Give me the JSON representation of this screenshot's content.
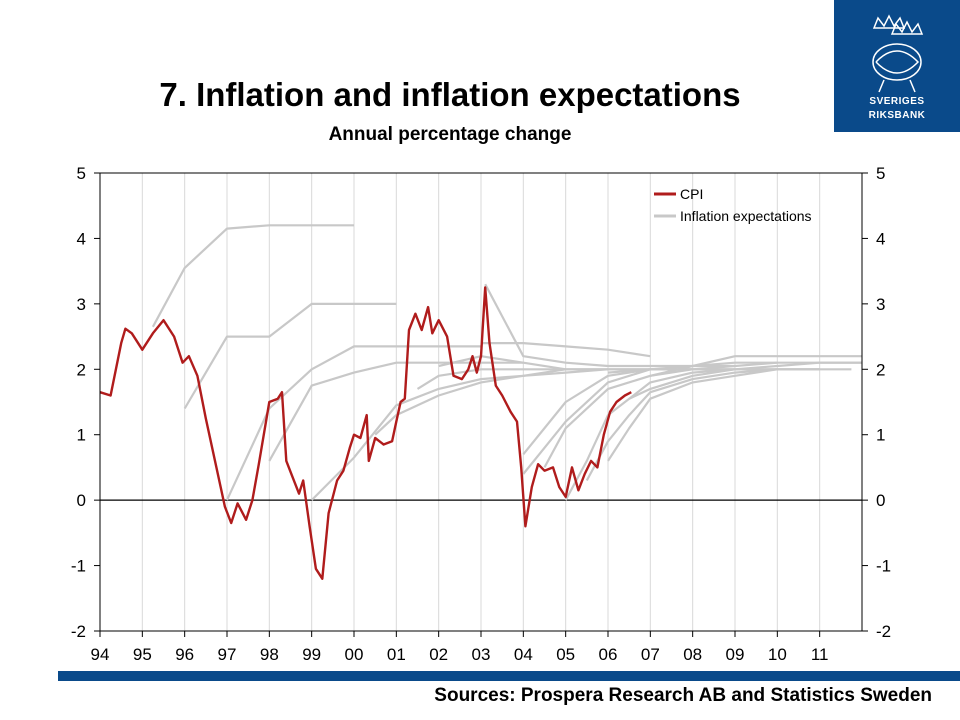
{
  "header": {
    "title": "7. Inflation and inflation expectations",
    "subtitle": "Annual percentage change"
  },
  "logo": {
    "line1": "SVERIGES",
    "line2": "RIKSBANK"
  },
  "footer": {
    "sources": "Sources: Prospera Research AB and Statistics Sweden"
  },
  "colors": {
    "cpi": "#b01c1c",
    "expectations": "#c8c8c8",
    "brand": "#0a4a8a"
  },
  "chart_data": {
    "type": "line",
    "title": "7. Inflation and inflation expectations",
    "subtitle": "Annual percentage change",
    "xlim": [
      1994,
      2012
    ],
    "ylim": [
      -2,
      5
    ],
    "x_tick_labels": [
      "94",
      "95",
      "96",
      "97",
      "98",
      "99",
      "00",
      "01",
      "02",
      "03",
      "04",
      "05",
      "06",
      "07",
      "08",
      "09",
      "10",
      "11"
    ],
    "y_tick_labels_left": [
      "5",
      "4",
      "3",
      "2",
      "1",
      "0",
      "-1",
      "-2"
    ],
    "y_tick_labels_right": [
      "5",
      "4",
      "3",
      "2",
      "1",
      "0",
      "-1",
      "-2"
    ],
    "grid": true,
    "legend_position": "top-right",
    "series": [
      {
        "name": "CPI",
        "color": "#b01c1c",
        "points": [
          [
            1994.0,
            1.65
          ],
          [
            1994.25,
            1.6
          ],
          [
            1994.5,
            2.4
          ],
          [
            1994.6,
            2.62
          ],
          [
            1994.75,
            2.55
          ],
          [
            1995.0,
            2.3
          ],
          [
            1995.25,
            2.55
          ],
          [
            1995.5,
            2.75
          ],
          [
            1995.75,
            2.5
          ],
          [
            1995.95,
            2.1
          ],
          [
            1996.1,
            2.2
          ],
          [
            1996.3,
            1.9
          ],
          [
            1996.5,
            1.25
          ],
          [
            1996.75,
            0.5
          ],
          [
            1996.95,
            -0.1
          ],
          [
            1997.1,
            -0.35
          ],
          [
            1997.25,
            -0.05
          ],
          [
            1997.45,
            -0.3
          ],
          [
            1997.6,
            0.0
          ],
          [
            1997.75,
            0.55
          ],
          [
            1998.0,
            1.5
          ],
          [
            1998.2,
            1.55
          ],
          [
            1998.3,
            1.65
          ],
          [
            1998.4,
            0.6
          ],
          [
            1998.55,
            0.35
          ],
          [
            1998.7,
            0.1
          ],
          [
            1998.8,
            0.3
          ],
          [
            1998.95,
            -0.4
          ],
          [
            1999.1,
            -1.05
          ],
          [
            1999.25,
            -1.2
          ],
          [
            1999.4,
            -0.2
          ],
          [
            1999.6,
            0.3
          ],
          [
            1999.75,
            0.45
          ],
          [
            1999.9,
            0.8
          ],
          [
            2000.0,
            1.0
          ],
          [
            2000.15,
            0.95
          ],
          [
            2000.3,
            1.3
          ],
          [
            2000.35,
            0.6
          ],
          [
            2000.5,
            0.95
          ],
          [
            2000.7,
            0.85
          ],
          [
            2000.9,
            0.9
          ],
          [
            2001.0,
            1.2
          ],
          [
            2001.1,
            1.5
          ],
          [
            2001.2,
            1.55
          ],
          [
            2001.3,
            2.6
          ],
          [
            2001.45,
            2.85
          ],
          [
            2001.6,
            2.6
          ],
          [
            2001.75,
            2.95
          ],
          [
            2001.85,
            2.55
          ],
          [
            2002.0,
            2.75
          ],
          [
            2002.2,
            2.5
          ],
          [
            2002.35,
            1.9
          ],
          [
            2002.55,
            1.85
          ],
          [
            2002.7,
            2.0
          ],
          [
            2002.8,
            2.2
          ],
          [
            2002.9,
            1.95
          ],
          [
            2003.0,
            2.2
          ],
          [
            2003.1,
            3.25
          ],
          [
            2003.2,
            2.4
          ],
          [
            2003.35,
            1.75
          ],
          [
            2003.5,
            1.6
          ],
          [
            2003.7,
            1.35
          ],
          [
            2003.85,
            1.2
          ],
          [
            2003.95,
            0.5
          ],
          [
            2004.05,
            -0.4
          ],
          [
            2004.2,
            0.2
          ],
          [
            2004.35,
            0.55
          ],
          [
            2004.5,
            0.45
          ],
          [
            2004.7,
            0.5
          ],
          [
            2004.85,
            0.2
          ],
          [
            2005.0,
            0.05
          ],
          [
            2005.15,
            0.5
          ],
          [
            2005.3,
            0.15
          ],
          [
            2005.45,
            0.4
          ],
          [
            2005.6,
            0.6
          ],
          [
            2005.75,
            0.5
          ],
          [
            2005.9,
            1.0
          ],
          [
            2006.05,
            1.35
          ],
          [
            2006.2,
            1.5
          ],
          [
            2006.4,
            1.6
          ],
          [
            2006.55,
            1.65
          ]
        ]
      },
      {
        "name": "Inflation expectations",
        "color": "#c8c8c8",
        "lines": [
          [
            [
              1995.25,
              2.65
            ],
            [
              1996.0,
              3.55
            ],
            [
              1997.0,
              4.15
            ],
            [
              1998.0,
              4.2
            ],
            [
              1999.0,
              4.2
            ],
            [
              2000.0,
              4.2
            ]
          ],
          [
            [
              1996.0,
              1.4
            ],
            [
              1997.0,
              2.5
            ],
            [
              1998.0,
              2.5
            ],
            [
              1999.0,
              3.0
            ],
            [
              2000.0,
              3.0
            ],
            [
              2001.0,
              3.0
            ]
          ],
          [
            [
              1997.0,
              0.0
            ],
            [
              1998.0,
              1.4
            ],
            [
              1999.0,
              2.0
            ],
            [
              2000.0,
              2.35
            ],
            [
              2001.0,
              2.35
            ],
            [
              2002.0,
              2.35
            ],
            [
              2003.0,
              2.35
            ]
          ],
          [
            [
              1998.0,
              0.6
            ],
            [
              1999.0,
              1.75
            ],
            [
              2000.0,
              1.95
            ],
            [
              2001.0,
              2.1
            ],
            [
              2002.0,
              2.1
            ],
            [
              2003.0,
              2.1
            ],
            [
              2004.0,
              2.1
            ]
          ],
          [
            [
              1999.0,
              0.0
            ],
            [
              2000.0,
              0.65
            ],
            [
              2001.0,
              1.45
            ],
            [
              2002.0,
              1.7
            ],
            [
              2003.0,
              1.85
            ],
            [
              2004.0,
              1.9
            ],
            [
              2005.0,
              2.0
            ]
          ],
          [
            [
              2000.5,
              1.0
            ],
            [
              2001.0,
              1.3
            ],
            [
              2002.0,
              1.6
            ],
            [
              2003.0,
              1.8
            ],
            [
              2004.0,
              1.9
            ],
            [
              2005.0,
              1.95
            ],
            [
              2006.0,
              2.0
            ]
          ],
          [
            [
              2001.5,
              1.7
            ],
            [
              2002.0,
              1.9
            ],
            [
              2003.0,
              2.0
            ],
            [
              2004.0,
              2.0
            ],
            [
              2005.0,
              2.0
            ],
            [
              2006.0,
              2.0
            ],
            [
              2007.0,
              2.0
            ]
          ],
          [
            [
              2002.0,
              2.05
            ],
            [
              2003.0,
              2.2
            ],
            [
              2004.0,
              2.1
            ],
            [
              2005.0,
              2.0
            ],
            [
              2006.0,
              2.0
            ],
            [
              2007.0,
              2.0
            ],
            [
              2008.0,
              2.0
            ]
          ],
          [
            [
              2003.1,
              3.3
            ],
            [
              2004.0,
              2.2
            ],
            [
              2005.0,
              2.1
            ],
            [
              2006.0,
              2.05
            ],
            [
              2007.0,
              2.05
            ],
            [
              2008.0,
              2.05
            ],
            [
              2009.0,
              2.05
            ]
          ],
          [
            [
              2003.0,
              2.4
            ],
            [
              2004.0,
              2.4
            ],
            [
              2005.0,
              2.35
            ],
            [
              2006.0,
              2.3
            ],
            [
              2007.0,
              2.2
            ]
          ],
          [
            [
              2004.0,
              0.4
            ],
            [
              2004.5,
              0.8
            ],
            [
              2005.0,
              1.2
            ],
            [
              2006.0,
              1.8
            ],
            [
              2007.0,
              2.0
            ],
            [
              2008.0,
              2.05
            ],
            [
              2009.0,
              2.1
            ],
            [
              2010.0,
              2.1
            ]
          ],
          [
            [
              2004.0,
              0.7
            ],
            [
              2005.0,
              1.5
            ],
            [
              2006.0,
              1.9
            ],
            [
              2007.0,
              2.0
            ],
            [
              2008.0,
              2.0
            ],
            [
              2009.0,
              2.0
            ]
          ],
          [
            [
              2004.5,
              0.5
            ],
            [
              2005.0,
              1.1
            ],
            [
              2006.0,
              1.7
            ],
            [
              2007.0,
              1.9
            ],
            [
              2008.0,
              2.0
            ],
            [
              2009.0,
              2.0
            ],
            [
              2010.0,
              2.0
            ]
          ],
          [
            [
              2005.0,
              0.0
            ],
            [
              2005.5,
              0.6
            ],
            [
              2006.0,
              1.3
            ],
            [
              2007.0,
              1.8
            ],
            [
              2008.0,
              1.95
            ],
            [
              2009.0,
              2.0
            ],
            [
              2010.0,
              2.0
            ],
            [
              2011.0,
              2.0
            ]
          ],
          [
            [
              2005.5,
              0.3
            ],
            [
              2006.0,
              0.9
            ],
            [
              2006.5,
              1.3
            ],
            [
              2007.0,
              1.65
            ],
            [
              2008.0,
              1.85
            ],
            [
              2009.0,
              1.95
            ],
            [
              2010.0,
              2.0
            ],
            [
              2011.0,
              2.0
            ]
          ],
          [
            [
              2006.0,
              0.6
            ],
            [
              2006.5,
              1.1
            ],
            [
              2007.0,
              1.55
            ],
            [
              2008.0,
              1.8
            ],
            [
              2009.0,
              1.9
            ],
            [
              2010.0,
              2.0
            ],
            [
              2011.0,
              2.0
            ],
            [
              2011.75,
              2.0
            ]
          ],
          [
            [
              2006.5,
              1.55
            ],
            [
              2007.0,
              1.7
            ],
            [
              2008.0,
              1.9
            ],
            [
              2009.0,
              2.0
            ],
            [
              2010.0,
              2.05
            ],
            [
              2011.0,
              2.1
            ],
            [
              2012.0,
              2.1
            ]
          ],
          [
            [
              2007.0,
              1.9
            ],
            [
              2008.0,
              2.05
            ],
            [
              2009.0,
              2.2
            ],
            [
              2010.0,
              2.2
            ],
            [
              2011.0,
              2.2
            ],
            [
              2012.0,
              2.2
            ]
          ],
          [
            [
              2006.0,
              1.95
            ],
            [
              2007.0,
              2.0
            ],
            [
              2008.0,
              2.0
            ],
            [
              2009.0,
              2.05
            ],
            [
              2010.0,
              2.1
            ],
            [
              2011.0,
              2.1
            ],
            [
              2012.0,
              2.1
            ]
          ]
        ]
      }
    ]
  }
}
